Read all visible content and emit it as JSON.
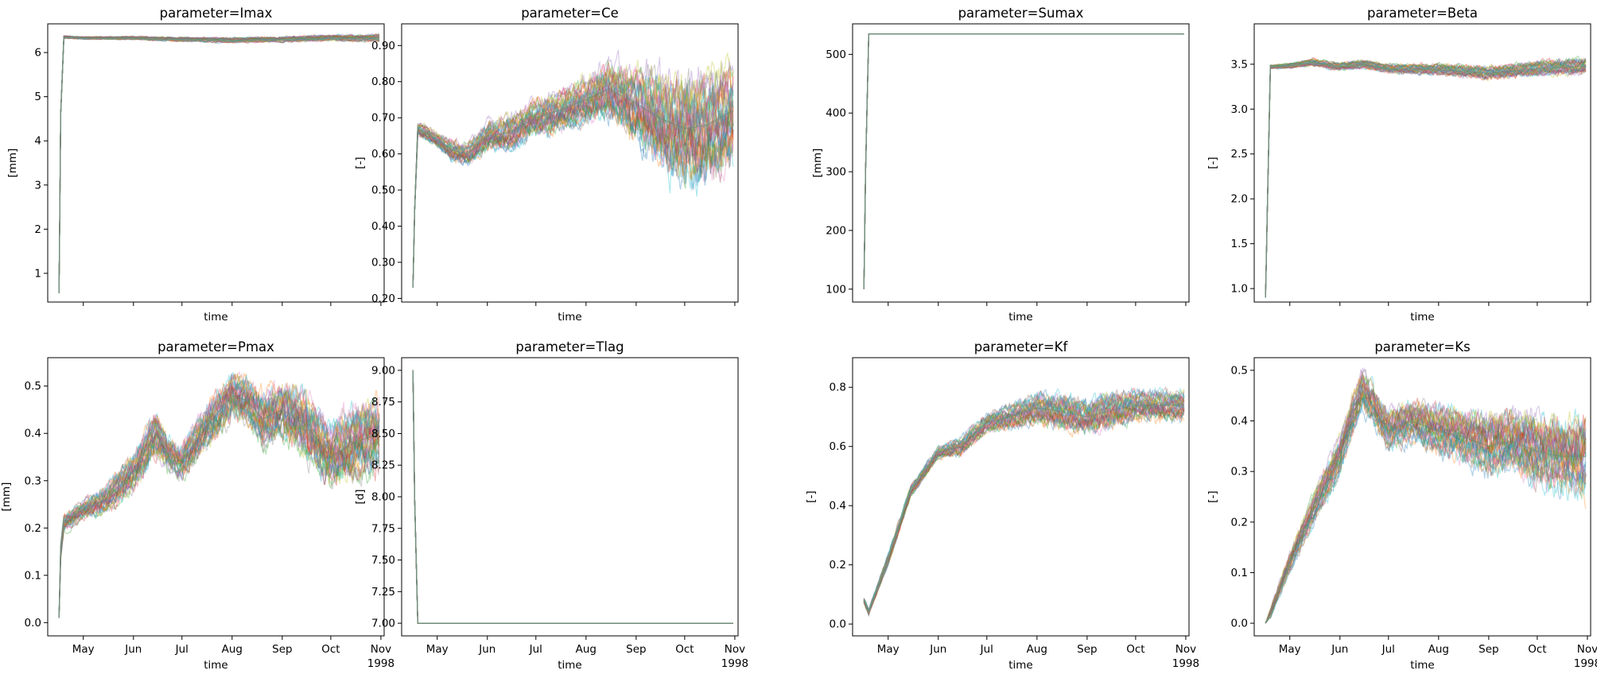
{
  "figure": {
    "xlabel": "time"
  },
  "x_axis": {
    "month_ticks": [
      {
        "date": "1998-05-01",
        "label": "May"
      },
      {
        "date": "1998-06-01",
        "label": "Jun"
      },
      {
        "date": "1998-07-01",
        "label": "Jul"
      },
      {
        "date": "1998-08-01",
        "label": "Aug"
      },
      {
        "date": "1998-09-01",
        "label": "Sep"
      },
      {
        "date": "1998-10-01",
        "label": "Oct"
      },
      {
        "date": "1998-11-01",
        "label": "Nov"
      }
    ],
    "year_label": "1998",
    "range": [
      "1998-04-09",
      "1998-11-03"
    ]
  },
  "chart_data": [
    {
      "type": "line",
      "title": "parameter=Imax",
      "xlabel": "time",
      "ylabel": "[mm]",
      "ylim": [
        0.35,
        6.65
      ],
      "yticks": [
        1,
        2,
        3,
        4,
        5,
        6
      ],
      "show_xticklabels": false,
      "summary": {
        "x": [
          "1998-04-16",
          "1998-04-17",
          "1998-04-19",
          "1998-05-01",
          "1998-06-01",
          "1998-07-01",
          "1998-08-01",
          "1998-09-01",
          "1998-10-01",
          "1998-10-31"
        ],
        "center": [
          0.55,
          4.6,
          6.35,
          6.33,
          6.33,
          6.3,
          6.28,
          6.3,
          6.33,
          6.33
        ],
        "spread": [
          0,
          0,
          0.03,
          0.03,
          0.04,
          0.05,
          0.06,
          0.06,
          0.07,
          0.08
        ]
      }
    },
    {
      "type": "line",
      "title": "parameter=Ce",
      "xlabel": "time",
      "ylabel": "[-]",
      "ylim": [
        0.19,
        0.96
      ],
      "yticks": [
        0.2,
        0.3,
        0.4,
        0.5,
        0.6,
        0.7,
        0.8,
        0.9
      ],
      "show_xticklabels": false,
      "summary": {
        "x": [
          "1998-04-16",
          "1998-04-17",
          "1998-04-19",
          "1998-05-01",
          "1998-05-10",
          "1998-05-20",
          "1998-06-01",
          "1998-06-15",
          "1998-07-01",
          "1998-07-15",
          "1998-08-01",
          "1998-08-15",
          "1998-09-01",
          "1998-09-15",
          "1998-10-01",
          "1998-10-15",
          "1998-10-31"
        ],
        "center": [
          0.23,
          0.44,
          0.67,
          0.64,
          0.61,
          0.6,
          0.65,
          0.66,
          0.7,
          0.72,
          0.75,
          0.78,
          0.74,
          0.7,
          0.67,
          0.68,
          0.72
        ],
        "spread": [
          0,
          0,
          0.02,
          0.02,
          0.03,
          0.03,
          0.04,
          0.05,
          0.05,
          0.06,
          0.06,
          0.08,
          0.1,
          0.13,
          0.15,
          0.15,
          0.14
        ]
      }
    },
    {
      "type": "line",
      "title": "parameter=Sumax",
      "xlabel": "time",
      "ylabel": "[mm]",
      "ylim": [
        78,
        552
      ],
      "yticks": [
        100,
        200,
        300,
        400,
        500
      ],
      "show_xticklabels": false,
      "summary": {
        "x": [
          "1998-04-16",
          "1998-04-17",
          "1998-04-19",
          "1998-05-01",
          "1998-07-01",
          "1998-09-01",
          "1998-10-31"
        ],
        "center": [
          100,
          300,
          535,
          535,
          535,
          535,
          535
        ],
        "spread": [
          0,
          0,
          0,
          0,
          0,
          0,
          0
        ]
      }
    },
    {
      "type": "line",
      "title": "parameter=Beta",
      "xlabel": "time",
      "ylabel": "[-]",
      "ylim": [
        0.85,
        3.95
      ],
      "yticks": [
        1.0,
        1.5,
        2.0,
        2.5,
        3.0,
        3.5
      ],
      "show_xticklabels": false,
      "summary": {
        "x": [
          "1998-04-16",
          "1998-04-17",
          "1998-04-19",
          "1998-05-01",
          "1998-05-15",
          "1998-06-01",
          "1998-06-15",
          "1998-07-01",
          "1998-08-01",
          "1998-09-01",
          "1998-10-01",
          "1998-10-31"
        ],
        "center": [
          0.9,
          1.8,
          3.47,
          3.48,
          3.52,
          3.47,
          3.5,
          3.45,
          3.44,
          3.4,
          3.45,
          3.48
        ],
        "spread": [
          0,
          0,
          0.02,
          0.03,
          0.04,
          0.04,
          0.05,
          0.05,
          0.06,
          0.07,
          0.08,
          0.09
        ]
      }
    },
    {
      "type": "line",
      "title": "parameter=Pmax",
      "xlabel": "time",
      "ylabel": "[mm]",
      "ylim": [
        -0.028,
        0.56
      ],
      "yticks": [
        0.0,
        0.1,
        0.2,
        0.3,
        0.4,
        0.5
      ],
      "show_xticklabels": true,
      "summary": {
        "x": [
          "1998-04-16",
          "1998-04-17",
          "1998-04-19",
          "1998-05-01",
          "1998-05-15",
          "1998-06-01",
          "1998-06-15",
          "1998-06-22",
          "1998-07-01",
          "1998-07-15",
          "1998-08-01",
          "1998-08-10",
          "1998-08-20",
          "1998-09-01",
          "1998-09-15",
          "1998-10-01",
          "1998-10-15",
          "1998-10-31"
        ],
        "center": [
          0.01,
          0.15,
          0.21,
          0.24,
          0.26,
          0.32,
          0.4,
          0.36,
          0.34,
          0.41,
          0.48,
          0.47,
          0.43,
          0.45,
          0.42,
          0.35,
          0.38,
          0.4
        ],
        "spread": [
          0,
          0.02,
          0.02,
          0.02,
          0.03,
          0.04,
          0.05,
          0.04,
          0.04,
          0.05,
          0.05,
          0.05,
          0.06,
          0.06,
          0.07,
          0.07,
          0.08,
          0.08
        ]
      }
    },
    {
      "type": "line",
      "title": "parameter=Tlag",
      "xlabel": "time",
      "ylabel": "[d]",
      "ylim": [
        6.9,
        9.1
      ],
      "yticks": [
        7.0,
        7.25,
        7.5,
        7.75,
        8.0,
        8.25,
        8.5,
        8.75,
        9.0
      ],
      "ytick_labels": [
        "7.00",
        "7.25",
        "7.50",
        "7.75",
        "8.00",
        "8.25",
        "8.50",
        "8.75",
        "9.00"
      ],
      "show_xticklabels": true,
      "summary": {
        "x": [
          "1998-04-16",
          "1998-04-17",
          "1998-04-19",
          "1998-05-01",
          "1998-07-01",
          "1998-09-01",
          "1998-10-31"
        ],
        "center": [
          9.0,
          8.0,
          7.0,
          7.0,
          7.0,
          7.0,
          7.0
        ],
        "spread": [
          0,
          0,
          0,
          0,
          0,
          0,
          0
        ]
      }
    },
    {
      "type": "line",
      "title": "parameter=Kf",
      "xlabel": "time",
      "ylabel": "[-]",
      "ylim": [
        -0.04,
        0.9
      ],
      "yticks": [
        0.0,
        0.2,
        0.4,
        0.6,
        0.8
      ],
      "show_xticklabels": true,
      "summary": {
        "x": [
          "1998-04-16",
          "1998-04-19",
          "1998-05-01",
          "1998-05-15",
          "1998-06-01",
          "1998-06-15",
          "1998-07-01",
          "1998-07-15",
          "1998-08-01",
          "1998-08-15",
          "1998-09-01",
          "1998-09-15",
          "1998-10-01",
          "1998-10-15",
          "1998-10-31"
        ],
        "center": [
          0.08,
          0.04,
          0.22,
          0.45,
          0.58,
          0.6,
          0.68,
          0.7,
          0.73,
          0.72,
          0.7,
          0.72,
          0.74,
          0.74,
          0.74
        ],
        "spread": [
          0.01,
          0.01,
          0.02,
          0.02,
          0.02,
          0.03,
          0.03,
          0.04,
          0.05,
          0.06,
          0.06,
          0.06,
          0.05,
          0.05,
          0.05
        ]
      }
    },
    {
      "type": "line",
      "title": "parameter=Ks",
      "xlabel": "time",
      "ylabel": "[-]",
      "ylim": [
        -0.025,
        0.525
      ],
      "yticks": [
        0.0,
        0.1,
        0.2,
        0.3,
        0.4,
        0.5
      ],
      "show_xticklabels": true,
      "summary": {
        "x": [
          "1998-04-16",
          "1998-04-19",
          "1998-05-01",
          "1998-05-15",
          "1998-06-01",
          "1998-06-10",
          "1998-06-15",
          "1998-07-01",
          "1998-07-15",
          "1998-08-01",
          "1998-08-15",
          "1998-09-01",
          "1998-09-15",
          "1998-10-01",
          "1998-10-15",
          "1998-10-31"
        ],
        "center": [
          0.0,
          0.02,
          0.12,
          0.22,
          0.33,
          0.42,
          0.46,
          0.38,
          0.4,
          0.38,
          0.37,
          0.35,
          0.36,
          0.34,
          0.33,
          0.33
        ],
        "spread": [
          0,
          0.01,
          0.02,
          0.03,
          0.04,
          0.04,
          0.04,
          0.04,
          0.04,
          0.05,
          0.05,
          0.06,
          0.06,
          0.07,
          0.07,
          0.08
        ]
      }
    }
  ]
}
